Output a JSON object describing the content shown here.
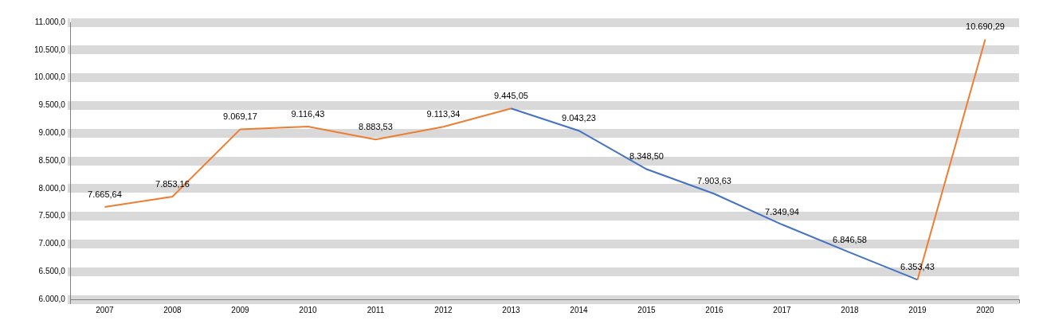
{
  "chart_data": {
    "type": "line",
    "categories": [
      "2007",
      "2008",
      "2009",
      "2010",
      "2011",
      "2012",
      "2013",
      "2014",
      "2015",
      "2016",
      "2017",
      "2018",
      "2019",
      "2020"
    ],
    "values": [
      7665.64,
      7853.16,
      9069.17,
      9116.43,
      8883.53,
      9113.34,
      9445.05,
      9043.23,
      8348.5,
      7903.63,
      7349.94,
      6846.58,
      6353.43,
      10690.29
    ],
    "value_labels": [
      "7.665,64",
      "7.853,16",
      "9.069,17",
      "9.116,43",
      "8.883,53",
      "9.113,34",
      "9.445,05",
      "9.043,23",
      "8.348,50",
      "7.903,63",
      "7.349,94",
      "6.846,58",
      "6.353,43",
      "10.690,29"
    ],
    "colors": [
      "#ed7d31",
      "#ed7d31",
      "#ed7d31",
      "#ed7d31",
      "#ed7d31",
      "#ed7d31",
      "#ed7d31",
      "#4472c4",
      "#4472c4",
      "#4472c4",
      "#4472c4",
      "#4472c4",
      "#4472c4",
      "#ed7d31"
    ],
    "ylim": [
      6000,
      11000
    ],
    "yticks": [
      {
        "value": 6000,
        "label": "6.000,0"
      },
      {
        "value": 6500,
        "label": "6.500,0"
      },
      {
        "value": 7000,
        "label": "7.000,0"
      },
      {
        "value": 7500,
        "label": "7.500,0"
      },
      {
        "value": 8000,
        "label": "8.000,0"
      },
      {
        "value": 8500,
        "label": "8.500,0"
      },
      {
        "value": 9000,
        "label": "9.000,0"
      },
      {
        "value": 9500,
        "label": "9.500,0"
      },
      {
        "value": 10000,
        "label": "10.000,0"
      },
      {
        "value": 10500,
        "label": "10.500,0"
      },
      {
        "value": 11000,
        "label": "11.000,0"
      }
    ],
    "grid": true,
    "data_labels": true
  }
}
